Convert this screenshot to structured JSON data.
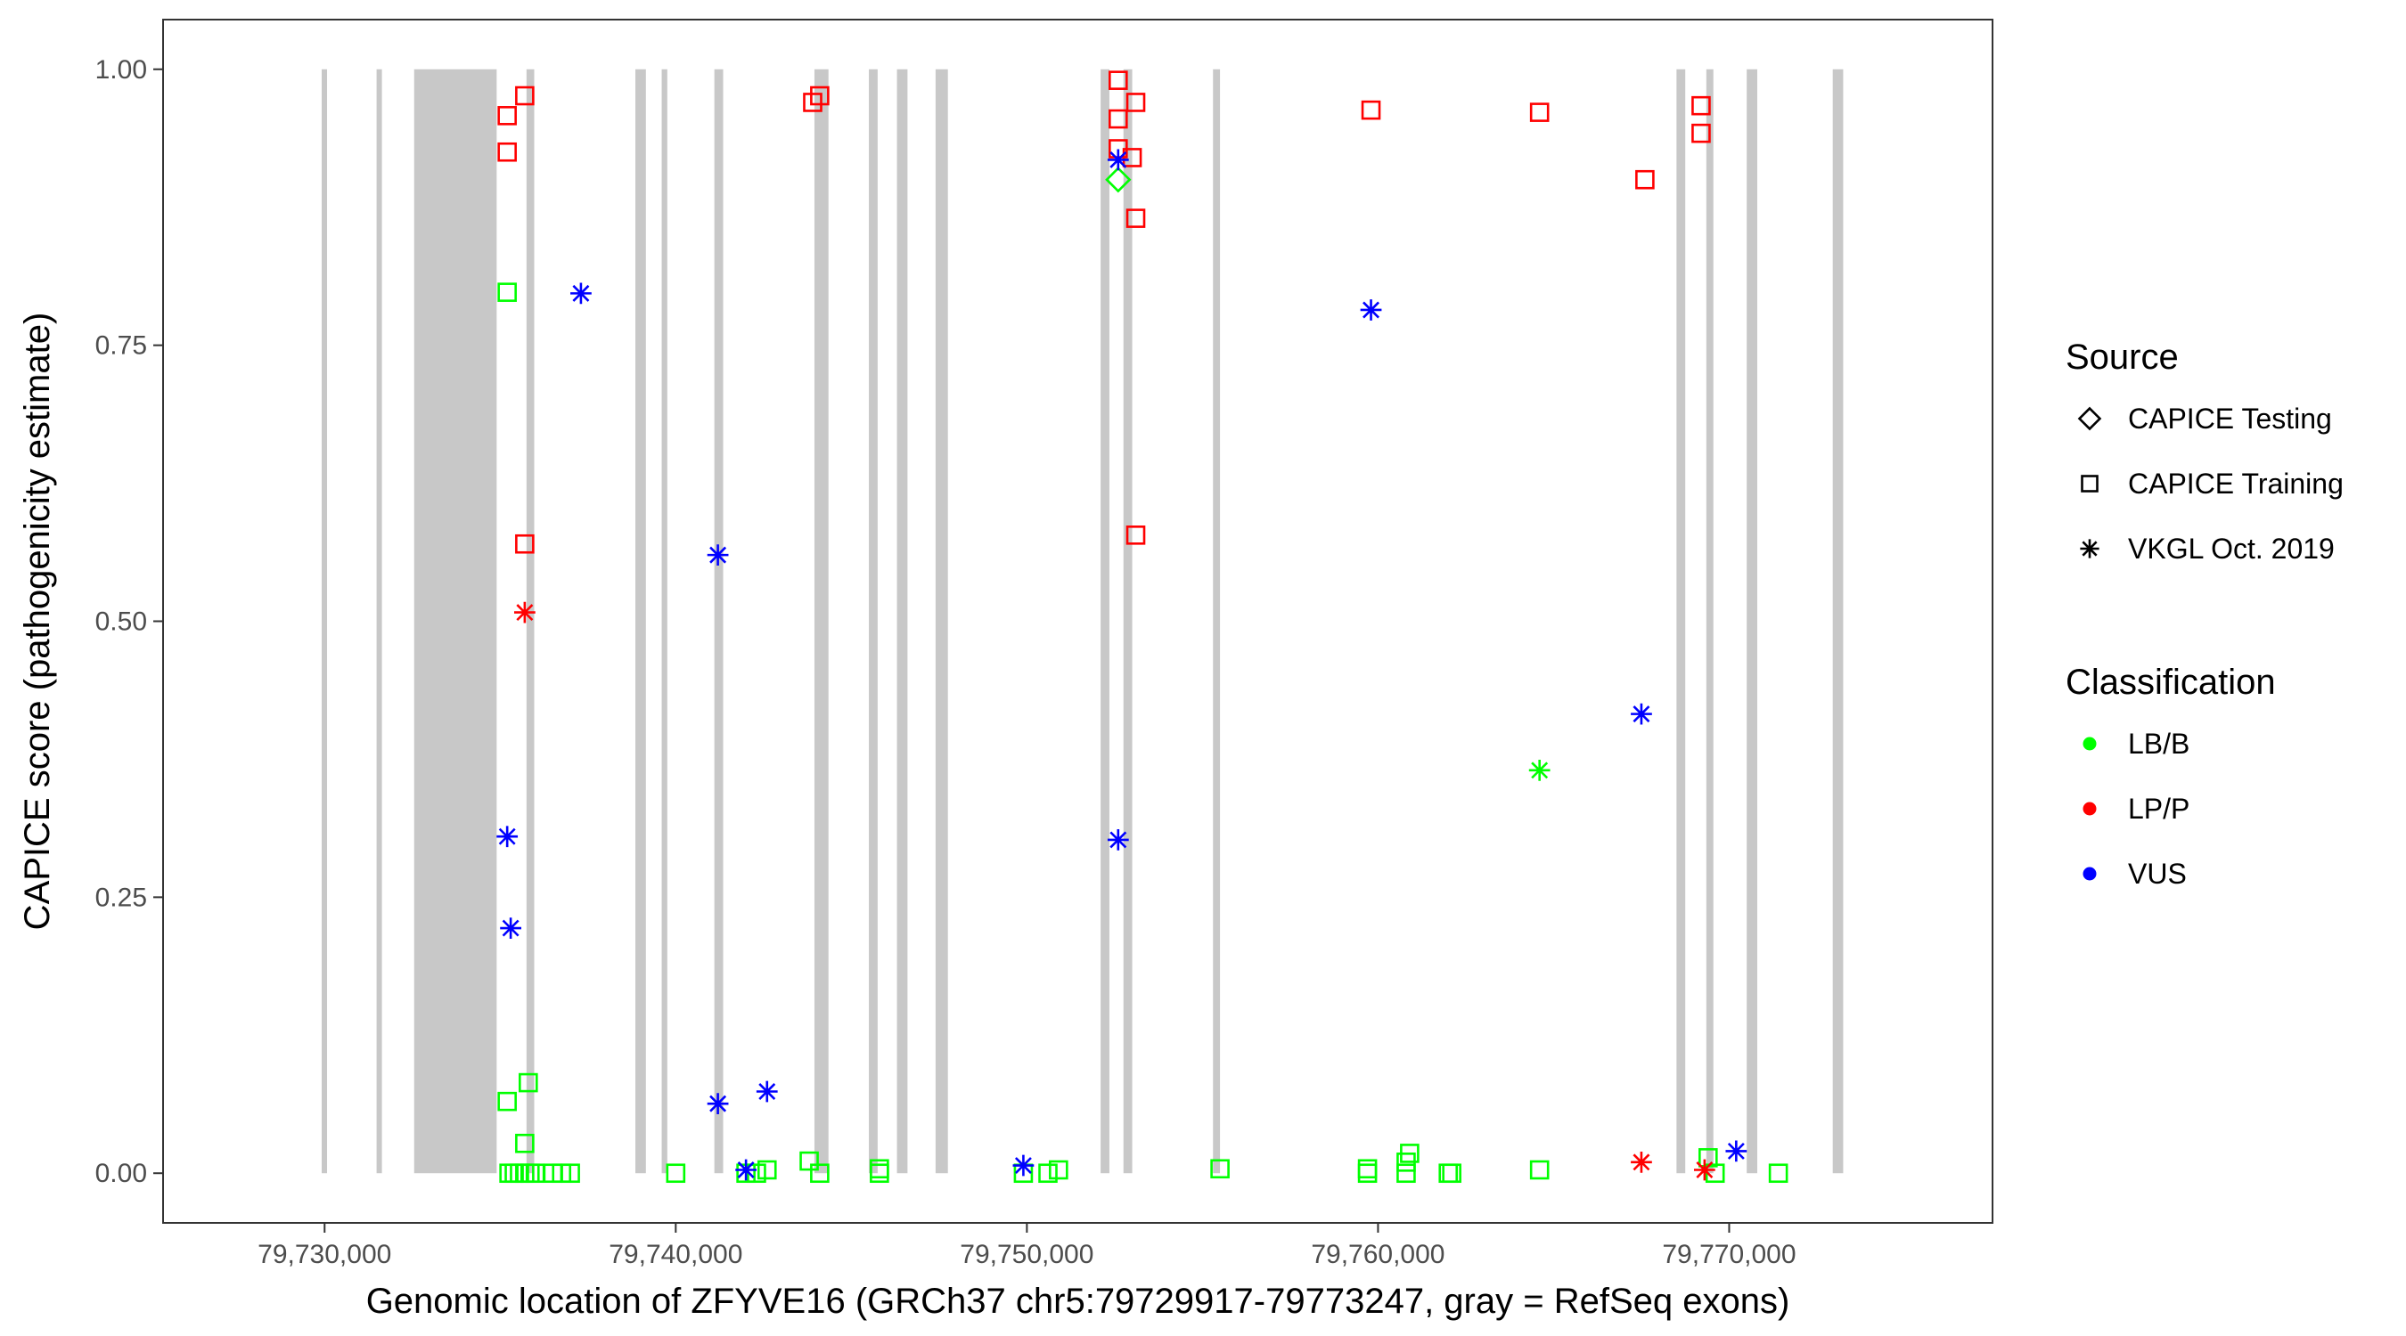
{
  "chart_data": {
    "type": "scatter",
    "xlabel": "Genomic location of ZFYVE16 (GRCh37 chr5:79729917-79773247, gray = RefSeq exons)",
    "ylabel": "CAPICE score (pathogenicity estimate)",
    "xlim": [
      79725400,
      79777500
    ],
    "ylim": [
      -0.045,
      1.045
    ],
    "x_ticks": [
      79730000,
      79740000,
      79750000,
      79760000,
      79770000
    ],
    "x_tick_labels": [
      "79,730,000",
      "79,740,000",
      "79,750,000",
      "79,760,000",
      "79,770,000"
    ],
    "y_ticks": [
      0,
      0.25,
      0.5,
      0.75,
      1.0
    ],
    "y_tick_labels": [
      "0.00",
      "0.25",
      "0.50",
      "0.75",
      "1.00"
    ],
    "grid": false,
    "legend_position": "right",
    "legends": [
      {
        "title": "Source",
        "entries": [
          {
            "label": "CAPICE Testing",
            "shape": "diamond"
          },
          {
            "label": "CAPICE Training",
            "shape": "square"
          },
          {
            "label": "VKGL Oct. 2019",
            "shape": "asterisk"
          }
        ]
      },
      {
        "title": "Classification",
        "entries": [
          {
            "label": "LB/B",
            "color": "#00ff00"
          },
          {
            "label": "LP/P",
            "color": "#ff0000"
          },
          {
            "label": "VUS",
            "color": "#0000ff"
          }
        ]
      }
    ],
    "colors": {
      "LB/B": "#00ff00",
      "LP/P": "#ff0000",
      "VUS": "#0000ff",
      "exon": "#c8c8c8"
    },
    "exons": [
      [
        79729917,
        79730070
      ],
      [
        79731480,
        79731600
      ],
      [
        79732550,
        79734900
      ],
      [
        79735750,
        79735970
      ],
      [
        79738850,
        79739150
      ],
      [
        79739600,
        79739760
      ],
      [
        79741100,
        79741350
      ],
      [
        79743950,
        79744350
      ],
      [
        79745500,
        79745750
      ],
      [
        79746300,
        79746600
      ],
      [
        79747400,
        79747750
      ],
      [
        79752100,
        79752350
      ],
      [
        79752750,
        79753000
      ],
      [
        79755300,
        79755500
      ],
      [
        79768500,
        79768750
      ],
      [
        79769350,
        79769550
      ],
      [
        79770500,
        79770800
      ],
      [
        79772950,
        79773247
      ]
    ],
    "series": [
      {
        "name": "CAPICE Training",
        "shape": "square",
        "points": [
          {
            "x": 79735200,
            "y": 0.958,
            "class": "LP/P"
          },
          {
            "x": 79735200,
            "y": 0.925,
            "class": "LP/P"
          },
          {
            "x": 79735700,
            "y": 0.976,
            "class": "LP/P"
          },
          {
            "x": 79735700,
            "y": 0.57,
            "class": "LP/P"
          },
          {
            "x": 79743900,
            "y": 0.97,
            "class": "LP/P"
          },
          {
            "x": 79744100,
            "y": 0.976,
            "class": "LP/P"
          },
          {
            "x": 79752600,
            "y": 0.99,
            "class": "LP/P"
          },
          {
            "x": 79752600,
            "y": 0.955,
            "class": "LP/P"
          },
          {
            "x": 79752600,
            "y": 0.928,
            "class": "LP/P"
          },
          {
            "x": 79753100,
            "y": 0.97,
            "class": "LP/P"
          },
          {
            "x": 79753000,
            "y": 0.92,
            "class": "LP/P"
          },
          {
            "x": 79753100,
            "y": 0.865,
            "class": "LP/P"
          },
          {
            "x": 79753100,
            "y": 0.578,
            "class": "LP/P"
          },
          {
            "x": 79759800,
            "y": 0.963,
            "class": "LP/P"
          },
          {
            "x": 79764600,
            "y": 0.961,
            "class": "LP/P"
          },
          {
            "x": 79767600,
            "y": 0.9,
            "class": "LP/P"
          },
          {
            "x": 79769200,
            "y": 0.967,
            "class": "LP/P"
          },
          {
            "x": 79769200,
            "y": 0.942,
            "class": "LP/P"
          },
          {
            "x": 79735200,
            "y": 0.798,
            "class": "LB/B"
          },
          {
            "x": 79735200,
            "y": 0.065,
            "class": "LB/B"
          },
          {
            "x": 79735800,
            "y": 0.082,
            "class": "LB/B"
          },
          {
            "x": 79735700,
            "y": 0.027,
            "class": "LB/B"
          },
          {
            "x": 79735250,
            "y": 0.0,
            "class": "LB/B"
          },
          {
            "x": 79735400,
            "y": 0.0,
            "class": "LB/B"
          },
          {
            "x": 79735550,
            "y": 0.0,
            "class": "LB/B"
          },
          {
            "x": 79735700,
            "y": 0.0,
            "class": "LB/B"
          },
          {
            "x": 79735850,
            "y": 0.0,
            "class": "LB/B"
          },
          {
            "x": 79736000,
            "y": 0.0,
            "class": "LB/B"
          },
          {
            "x": 79736500,
            "y": 0.0,
            "class": "LB/B"
          },
          {
            "x": 79736750,
            "y": 0.0,
            "class": "LB/B"
          },
          {
            "x": 79737000,
            "y": 0.0,
            "class": "LB/B"
          },
          {
            "x": 79740000,
            "y": 0.0,
            "class": "LB/B"
          },
          {
            "x": 79742000,
            "y": 0.0,
            "class": "LB/B"
          },
          {
            "x": 79742300,
            "y": 0.0,
            "class": "LB/B"
          },
          {
            "x": 79742600,
            "y": 0.003,
            "class": "LB/B"
          },
          {
            "x": 79743800,
            "y": 0.011,
            "class": "LB/B"
          },
          {
            "x": 79744100,
            "y": 0.0,
            "class": "LB/B"
          },
          {
            "x": 79745800,
            "y": 0.004,
            "class": "LB/B"
          },
          {
            "x": 79745800,
            "y": 0.0,
            "class": "LB/B"
          },
          {
            "x": 79749900,
            "y": 0.0,
            "class": "LB/B"
          },
          {
            "x": 79750600,
            "y": 0.0,
            "class": "LB/B"
          },
          {
            "x": 79750900,
            "y": 0.003,
            "class": "LB/B"
          },
          {
            "x": 79755500,
            "y": 0.004,
            "class": "LB/B"
          },
          {
            "x": 79759700,
            "y": 0.004,
            "class": "LB/B"
          },
          {
            "x": 79759700,
            "y": 0.0,
            "class": "LB/B"
          },
          {
            "x": 79760800,
            "y": 0.01,
            "class": "LB/B"
          },
          {
            "x": 79760900,
            "y": 0.018,
            "class": "LB/B"
          },
          {
            "x": 79760800,
            "y": 0.0,
            "class": "LB/B"
          },
          {
            "x": 79762000,
            "y": 0.0,
            "class": "LB/B"
          },
          {
            "x": 79762100,
            "y": 0.0,
            "class": "LB/B"
          },
          {
            "x": 79764600,
            "y": 0.003,
            "class": "LB/B"
          },
          {
            "x": 79769400,
            "y": 0.014,
            "class": "LB/B"
          },
          {
            "x": 79769600,
            "y": 0.0,
            "class": "LB/B"
          },
          {
            "x": 79771400,
            "y": 0.0,
            "class": "LB/B"
          }
        ]
      },
      {
        "name": "CAPICE Testing",
        "shape": "diamond",
        "points": [
          {
            "x": 79752600,
            "y": 0.9,
            "class": "LB/B"
          }
        ]
      },
      {
        "name": "VKGL Oct. 2019",
        "shape": "asterisk",
        "points": [
          {
            "x": 79737300,
            "y": 0.797,
            "class": "VUS"
          },
          {
            "x": 79735700,
            "y": 0.508,
            "class": "LP/P"
          },
          {
            "x": 79735200,
            "y": 0.305,
            "class": "VUS"
          },
          {
            "x": 79735300,
            "y": 0.222,
            "class": "VUS"
          },
          {
            "x": 79741200,
            "y": 0.56,
            "class": "VUS"
          },
          {
            "x": 79741200,
            "y": 0.063,
            "class": "VUS"
          },
          {
            "x": 79742600,
            "y": 0.074,
            "class": "VUS"
          },
          {
            "x": 79742000,
            "y": 0.003,
            "class": "VUS"
          },
          {
            "x": 79749900,
            "y": 0.007,
            "class": "VUS"
          },
          {
            "x": 79752600,
            "y": 0.918,
            "class": "VUS"
          },
          {
            "x": 79752600,
            "y": 0.302,
            "class": "VUS"
          },
          {
            "x": 79759800,
            "y": 0.782,
            "class": "VUS"
          },
          {
            "x": 79764600,
            "y": 0.365,
            "class": "LB/B"
          },
          {
            "x": 79767500,
            "y": 0.416,
            "class": "VUS"
          },
          {
            "x": 79767500,
            "y": 0.01,
            "class": "LP/P"
          },
          {
            "x": 79769300,
            "y": 0.003,
            "class": "LP/P"
          },
          {
            "x": 79770200,
            "y": 0.02,
            "class": "VUS"
          }
        ]
      }
    ]
  }
}
